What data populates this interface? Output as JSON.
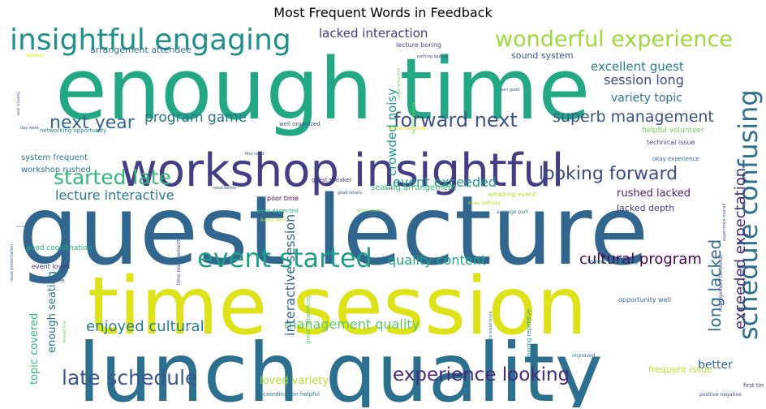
{
  "chart_data": {
    "type": "wordcloud",
    "title": "Most Frequent Words in Feedback",
    "background": "#ffffff",
    "palette": "viridis",
    "words": [
      {
        "text": "enough time",
        "weight": 100,
        "color": "#22a884",
        "rotate": false
      },
      {
        "text": "guest lecture",
        "weight": 98,
        "color": "#31668e",
        "rotate": false
      },
      {
        "text": "time session",
        "weight": 82,
        "color": "#dde318",
        "rotate": false
      },
      {
        "text": "lunch quality",
        "weight": 80,
        "color": "#2c6f8e",
        "rotate": false
      },
      {
        "text": "workshop insightful",
        "weight": 48,
        "color": "#433e85",
        "rotate": false
      },
      {
        "text": "insightful engaging",
        "weight": 30,
        "color": "#21908d",
        "rotate": false
      },
      {
        "text": "schedule confusing",
        "weight": 32,
        "color": "#2d708e",
        "rotate": true
      },
      {
        "text": "wonderful experience",
        "weight": 24,
        "color": "#9dd93b",
        "rotate": false
      },
      {
        "text": "event started",
        "weight": 28,
        "color": "#1f9e89",
        "rotate": false
      },
      {
        "text": "started late",
        "weight": 24,
        "color": "#35b779",
        "rotate": false
      },
      {
        "text": "forward next",
        "weight": 22,
        "color": "#3b528b",
        "rotate": false
      },
      {
        "text": "looking forward",
        "weight": 20,
        "color": "#3e4989",
        "rotate": false
      },
      {
        "text": "next year",
        "weight": 20,
        "color": "#31668e",
        "rotate": false
      },
      {
        "text": "late schedule",
        "weight": 22,
        "color": "#38598c",
        "rotate": false
      },
      {
        "text": "experience looking",
        "weight": 20,
        "color": "#482878",
        "rotate": false
      },
      {
        "text": "exceeded expectation",
        "weight": 17,
        "color": "#472c7a",
        "rotate": true
      },
      {
        "text": "superb management",
        "weight": 17,
        "color": "#3b528b",
        "rotate": false
      },
      {
        "text": "cultural program",
        "weight": 17,
        "color": "#440154",
        "rotate": false
      },
      {
        "text": "enjoyed cultural",
        "weight": 16,
        "color": "#287d8e",
        "rotate": false
      },
      {
        "text": "long lacked",
        "weight": 17,
        "color": "#2e6e8e",
        "rotate": true
      },
      {
        "text": "program game",
        "weight": 15,
        "color": "#2a768e",
        "rotate": false
      },
      {
        "text": "lecture interactive",
        "weight": 15,
        "color": "#29798e",
        "rotate": false
      },
      {
        "text": "event exceeded",
        "weight": 15,
        "color": "#1fa187",
        "rotate": false
      },
      {
        "text": "quality content",
        "weight": 15,
        "color": "#20a486",
        "rotate": false
      },
      {
        "text": "management quality",
        "weight": 15,
        "color": "#5ec962",
        "rotate": false
      },
      {
        "text": "excellent guest",
        "weight": 14,
        "color": "#277f8e",
        "rotate": false
      },
      {
        "text": "session long",
        "weight": 14,
        "color": "#404688",
        "rotate": false
      },
      {
        "text": "variety topic",
        "weight": 13,
        "color": "#2c728e",
        "rotate": false
      },
      {
        "text": "lacked interaction",
        "weight": 14,
        "color": "#443a83",
        "rotate": false
      },
      {
        "text": "interactive session",
        "weight": 14,
        "color": "#31688e",
        "rotate": true
      },
      {
        "text": "crowded noisy",
        "weight": 13,
        "color": "#1e9b8a",
        "rotate": true
      },
      {
        "text": "topic covered",
        "weight": 12,
        "color": "#35b779",
        "rotate": true
      },
      {
        "text": "enough seating",
        "weight": 12,
        "color": "#2a788e",
        "rotate": true
      },
      {
        "text": "loved variety",
        "weight": 12,
        "color": "#b5de2b",
        "rotate": false
      },
      {
        "text": "better",
        "weight": 12,
        "color": "#2f6b8e",
        "rotate": false
      },
      {
        "text": "rushed lacked",
        "weight": 11,
        "color": "#481f70",
        "rotate": false
      },
      {
        "text": "lacked depth",
        "weight": 9,
        "color": "#443983",
        "rotate": false
      },
      {
        "text": "frequent issue",
        "weight": 9,
        "color": "#c2df23",
        "rotate": false
      },
      {
        "text": "sound system",
        "weight": 9,
        "color": "#3b528b",
        "rotate": false
      },
      {
        "text": "arrangement attendee",
        "weight": 9,
        "color": "#2d708e",
        "rotate": false
      },
      {
        "text": "seating arrangement",
        "weight": 8,
        "color": "#37b878",
        "rotate": false
      },
      {
        "text": "system frequent",
        "weight": 8,
        "color": "#2a768e",
        "rotate": false
      },
      {
        "text": "workshop rushed",
        "weight": 8,
        "color": "#2c728e",
        "rotate": false
      },
      {
        "text": "lecture boring",
        "weight": 7,
        "color": "#424186",
        "rotate": false
      },
      {
        "text": "poor time",
        "weight": 7,
        "color": "#440154",
        "rotate": false
      },
      {
        "text": "guest speaker",
        "weight": 6,
        "color": "#453781",
        "rotate": false
      },
      {
        "text": "good coordination",
        "weight": 7,
        "color": "#26ad81",
        "rotate": false
      },
      {
        "text": "event loved",
        "weight": 7,
        "color": "#46327e",
        "rotate": false
      },
      {
        "text": "went expected",
        "weight": 6,
        "color": "#29af7f",
        "rotate": false
      },
      {
        "text": "amazing event",
        "weight": 6,
        "color": "#b5de2b",
        "rotate": false
      },
      {
        "text": "loved workshop",
        "weight": 6,
        "color": "#2a788e",
        "rotate": false
      },
      {
        "text": "opportunity well",
        "weight": 6,
        "color": "#31688e",
        "rotate": false
      },
      {
        "text": "helpful volunteer",
        "weight": 6,
        "color": "#6ece58",
        "rotate": false
      },
      {
        "text": "technical issue",
        "weight": 6,
        "color": "#3e4989",
        "rotate": false
      },
      {
        "text": "networking opportunity",
        "weight": 6,
        "color": "#287d8e",
        "rotate": false
      },
      {
        "text": "well organized",
        "weight": 6,
        "color": "#3b528b",
        "rotate": false
      },
      {
        "text": "workshop guest",
        "weight": 5,
        "color": "#dde318",
        "rotate": false
      },
      {
        "text": "okay experience",
        "weight": 6,
        "color": "#31688e",
        "rotate": false
      },
      {
        "text": "first time",
        "weight": 6,
        "color": "#453781",
        "rotate": false
      },
      {
        "text": "coordination helpful",
        "weight": 5,
        "color": "#2a788e",
        "rotate": false
      },
      {
        "text": "great networking",
        "weight": 5,
        "color": "#5ec962",
        "rotate": true
      },
      {
        "text": "time management",
        "weight": 5,
        "color": "#3b528b",
        "rotate": true
      },
      {
        "text": "boring repetitive",
        "weight": 6,
        "color": "#21918c",
        "rotate": true
      },
      {
        "text": "moderate experience",
        "weight": 5,
        "color": "#2c728e",
        "rotate": true
      },
      {
        "text": "management technical",
        "weight": 5,
        "color": "#424186",
        "rotate": true
      },
      {
        "text": "issue presentation",
        "weight": 5,
        "color": "#2c728e",
        "rotate": true
      },
      {
        "text": "experience overall",
        "weight": 5,
        "color": "#3b528b",
        "rotate": true
      },
      {
        "text": "overall fine",
        "weight": 5,
        "color": "#6ece58",
        "rotate": true
      },
      {
        "text": "better planning",
        "weight": 4,
        "color": "#7ad151",
        "rotate": true
      },
      {
        "text": "experience first",
        "weight": 4,
        "color": "#7ad151",
        "rotate": true
      },
      {
        "text": "average part",
        "weight": 5,
        "color": "#2a788e",
        "rotate": false
      },
      {
        "text": "okay nothing",
        "weight": 5,
        "color": "#b5de2b",
        "rotate": false
      },
      {
        "text": "event went",
        "weight": 5,
        "color": "#c2df23",
        "rotate": false
      },
      {
        "text": "nothing special",
        "weight": 4,
        "color": "#3e4989",
        "rotate": false
      },
      {
        "text": "part good",
        "weight": 4,
        "color": "#31688e",
        "rotate": false
      },
      {
        "text": "fine need",
        "weight": 4,
        "color": "#3b528b",
        "rotate": false
      },
      {
        "text": "good others",
        "weight": 4,
        "color": "#3e4989",
        "rotate": false
      },
      {
        "text": "others much",
        "weight": 4,
        "color": "#8fd744",
        "rotate": false
      },
      {
        "text": "need better",
        "weight": 4,
        "color": "#3b528b",
        "rotate": false
      },
      {
        "text": "attendee",
        "weight": 5,
        "color": "#3b528b",
        "rotate": false
      },
      {
        "text": "improved",
        "weight": 4,
        "color": "#2c728e",
        "rotate": false
      },
      {
        "text": "positive negative",
        "weight": 4,
        "color": "#3b528b",
        "rotate": false
      },
      {
        "text": "session",
        "weight": 4,
        "color": "#dde318",
        "rotate": false
      },
      {
        "text": "went smoothly",
        "weight": 3,
        "color": "#3e4989",
        "rotate": true
      },
      {
        "text": "day went",
        "weight": 3,
        "color": "#3b528b",
        "rotate": false
      },
      {
        "text": "bad few",
        "weight": 2,
        "color": "#3b528b",
        "rotate": false
      },
      {
        "text": "neither",
        "weight": 2,
        "color": "#424186",
        "rotate": false
      }
    ]
  }
}
